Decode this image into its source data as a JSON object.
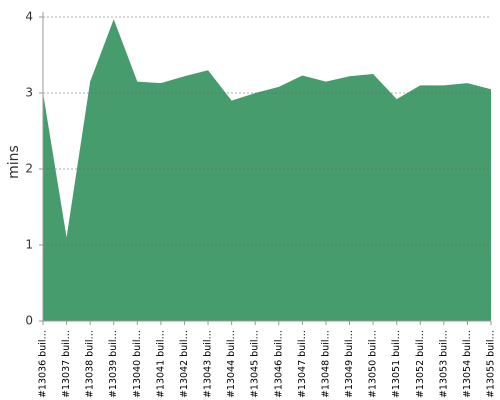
{
  "chart_data": {
    "type": "area",
    "y_label": "mins",
    "categories": [
      "#13036 buil…",
      "#13037 buil…",
      "#13038 buil…",
      "#13039 buil…",
      "#13040 buil…",
      "#13041 buil…",
      "#13042 buil…",
      "#13043 buil…",
      "#13044 buil…",
      "#13045 buil…",
      "#13046 buil…",
      "#13047 buil…",
      "#13048 buil…",
      "#13049 buil…",
      "#13050 buil…",
      "#13051 buil…",
      "#13052 buil…",
      "#13053 buil…",
      "#13054 buil…",
      "#13055 buil…"
    ],
    "values": [
      3.0,
      1.1,
      3.15,
      3.97,
      3.15,
      3.13,
      3.22,
      3.3,
      2.9,
      3.0,
      3.08,
      3.23,
      3.15,
      3.22,
      3.25,
      2.92,
      3.1,
      3.1,
      3.13,
      3.05
    ],
    "color": "#469c6c",
    "ylim": [
      0,
      4
    ],
    "yticks": [
      0,
      1,
      2,
      3,
      4
    ],
    "grid": true
  }
}
